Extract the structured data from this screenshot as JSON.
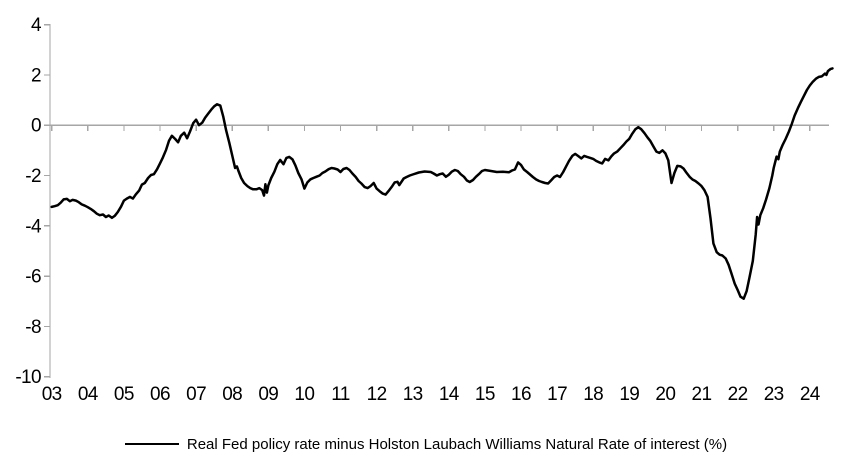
{
  "chart_data": {
    "type": "line",
    "title": "",
    "xlabel": "",
    "ylabel": "",
    "grid": "zero-line-only",
    "legend_position": "bottom-center",
    "background_color": "#FFFFFF",
    "axis_color": "#A6A6A6",
    "gridline_value": 0,
    "y_axis": {
      "range": [
        -10,
        4
      ],
      "tick_values": [
        4,
        2,
        0,
        -2,
        -4,
        -6,
        -8,
        -10
      ]
    },
    "x_axis": {
      "first_tick_year": 2003,
      "tick_labels": [
        "03",
        "04",
        "05",
        "06",
        "07",
        "08",
        "09",
        "10",
        "11",
        "12",
        "13",
        "14",
        "15",
        "16",
        "17",
        "18",
        "19",
        "20",
        "21",
        "22",
        "23",
        "24"
      ],
      "range": [
        2002.95,
        2024.7
      ]
    },
    "series": [
      {
        "name": "Real Fed policy rate minus Holston Laubach Williams Natural Rate of interest (%)",
        "color": "#000000",
        "points": [
          [
            2003.0,
            -3.25
          ],
          [
            2003.08,
            -3.22
          ],
          [
            2003.17,
            -3.18
          ],
          [
            2003.25,
            -3.08
          ],
          [
            2003.33,
            -2.95
          ],
          [
            2003.42,
            -2.93
          ],
          [
            2003.5,
            -3.02
          ],
          [
            2003.58,
            -2.97
          ],
          [
            2003.67,
            -3.0
          ],
          [
            2003.75,
            -3.06
          ],
          [
            2003.83,
            -3.15
          ],
          [
            2003.92,
            -3.2
          ],
          [
            2004.0,
            -3.26
          ],
          [
            2004.08,
            -3.33
          ],
          [
            2004.17,
            -3.42
          ],
          [
            2004.25,
            -3.52
          ],
          [
            2004.33,
            -3.58
          ],
          [
            2004.42,
            -3.55
          ],
          [
            2004.5,
            -3.65
          ],
          [
            2004.58,
            -3.59
          ],
          [
            2004.67,
            -3.68
          ],
          [
            2004.75,
            -3.6
          ],
          [
            2004.83,
            -3.45
          ],
          [
            2004.92,
            -3.24
          ],
          [
            2005.0,
            -3.0
          ],
          [
            2005.08,
            -2.92
          ],
          [
            2005.17,
            -2.85
          ],
          [
            2005.25,
            -2.92
          ],
          [
            2005.33,
            -2.75
          ],
          [
            2005.42,
            -2.6
          ],
          [
            2005.5,
            -2.36
          ],
          [
            2005.58,
            -2.3
          ],
          [
            2005.67,
            -2.1
          ],
          [
            2005.75,
            -1.98
          ],
          [
            2005.83,
            -1.95
          ],
          [
            2005.92,
            -1.75
          ],
          [
            2006.0,
            -1.52
          ],
          [
            2006.08,
            -1.28
          ],
          [
            2006.17,
            -0.98
          ],
          [
            2006.25,
            -0.62
          ],
          [
            2006.33,
            -0.42
          ],
          [
            2006.42,
            -0.55
          ],
          [
            2006.5,
            -0.68
          ],
          [
            2006.58,
            -0.42
          ],
          [
            2006.67,
            -0.3
          ],
          [
            2006.75,
            -0.52
          ],
          [
            2006.83,
            -0.25
          ],
          [
            2006.92,
            0.08
          ],
          [
            2007.0,
            0.22
          ],
          [
            2007.08,
            0.0
          ],
          [
            2007.17,
            0.1
          ],
          [
            2007.25,
            0.3
          ],
          [
            2007.33,
            0.45
          ],
          [
            2007.42,
            0.62
          ],
          [
            2007.5,
            0.75
          ],
          [
            2007.58,
            0.83
          ],
          [
            2007.67,
            0.78
          ],
          [
            2007.75,
            0.35
          ],
          [
            2007.83,
            -0.2
          ],
          [
            2007.92,
            -0.7
          ],
          [
            2008.0,
            -1.2
          ],
          [
            2008.08,
            -1.7
          ],
          [
            2008.13,
            -1.64
          ],
          [
            2008.17,
            -1.8
          ],
          [
            2008.25,
            -2.1
          ],
          [
            2008.33,
            -2.3
          ],
          [
            2008.42,
            -2.42
          ],
          [
            2008.5,
            -2.5
          ],
          [
            2008.58,
            -2.55
          ],
          [
            2008.67,
            -2.55
          ],
          [
            2008.75,
            -2.5
          ],
          [
            2008.83,
            -2.58
          ],
          [
            2008.88,
            -2.8
          ],
          [
            2008.92,
            -2.35
          ],
          [
            2008.96,
            -2.68
          ],
          [
            2009.0,
            -2.4
          ],
          [
            2009.08,
            -2.1
          ],
          [
            2009.17,
            -1.85
          ],
          [
            2009.25,
            -1.55
          ],
          [
            2009.33,
            -1.38
          ],
          [
            2009.42,
            -1.55
          ],
          [
            2009.5,
            -1.3
          ],
          [
            2009.58,
            -1.26
          ],
          [
            2009.67,
            -1.36
          ],
          [
            2009.75,
            -1.6
          ],
          [
            2009.83,
            -1.9
          ],
          [
            2009.92,
            -2.15
          ],
          [
            2010.0,
            -2.52
          ],
          [
            2010.08,
            -2.28
          ],
          [
            2010.17,
            -2.15
          ],
          [
            2010.25,
            -2.1
          ],
          [
            2010.33,
            -2.05
          ],
          [
            2010.42,
            -2.0
          ],
          [
            2010.5,
            -1.9
          ],
          [
            2010.58,
            -1.84
          ],
          [
            2010.67,
            -1.75
          ],
          [
            2010.75,
            -1.7
          ],
          [
            2010.83,
            -1.72
          ],
          [
            2010.92,
            -1.76
          ],
          [
            2011.0,
            -1.86
          ],
          [
            2011.08,
            -1.74
          ],
          [
            2011.17,
            -1.7
          ],
          [
            2011.25,
            -1.78
          ],
          [
            2011.33,
            -1.92
          ],
          [
            2011.42,
            -2.06
          ],
          [
            2011.5,
            -2.22
          ],
          [
            2011.58,
            -2.32
          ],
          [
            2011.67,
            -2.46
          ],
          [
            2011.75,
            -2.5
          ],
          [
            2011.83,
            -2.42
          ],
          [
            2011.92,
            -2.3
          ],
          [
            2012.0,
            -2.52
          ],
          [
            2012.08,
            -2.62
          ],
          [
            2012.17,
            -2.72
          ],
          [
            2012.25,
            -2.76
          ],
          [
            2012.33,
            -2.62
          ],
          [
            2012.42,
            -2.45
          ],
          [
            2012.5,
            -2.28
          ],
          [
            2012.58,
            -2.25
          ],
          [
            2012.63,
            -2.38
          ],
          [
            2012.75,
            -2.12
          ],
          [
            2012.83,
            -2.06
          ],
          [
            2012.92,
            -2.0
          ],
          [
            2013.0,
            -1.96
          ],
          [
            2013.17,
            -1.88
          ],
          [
            2013.33,
            -1.84
          ],
          [
            2013.5,
            -1.86
          ],
          [
            2013.58,
            -1.92
          ],
          [
            2013.67,
            -2.0
          ],
          [
            2013.75,
            -1.95
          ],
          [
            2013.83,
            -1.92
          ],
          [
            2013.92,
            -2.05
          ],
          [
            2014.0,
            -1.97
          ],
          [
            2014.08,
            -1.85
          ],
          [
            2014.17,
            -1.78
          ],
          [
            2014.25,
            -1.82
          ],
          [
            2014.33,
            -1.95
          ],
          [
            2014.42,
            -2.05
          ],
          [
            2014.5,
            -2.2
          ],
          [
            2014.58,
            -2.26
          ],
          [
            2014.67,
            -2.18
          ],
          [
            2014.75,
            -2.05
          ],
          [
            2014.83,
            -1.95
          ],
          [
            2014.92,
            -1.82
          ],
          [
            2015.0,
            -1.78
          ],
          [
            2015.17,
            -1.82
          ],
          [
            2015.33,
            -1.86
          ],
          [
            2015.5,
            -1.85
          ],
          [
            2015.67,
            -1.87
          ],
          [
            2015.75,
            -1.8
          ],
          [
            2015.83,
            -1.76
          ],
          [
            2015.92,
            -1.48
          ],
          [
            2016.0,
            -1.58
          ],
          [
            2016.08,
            -1.76
          ],
          [
            2016.17,
            -1.86
          ],
          [
            2016.25,
            -1.96
          ],
          [
            2016.33,
            -2.06
          ],
          [
            2016.42,
            -2.16
          ],
          [
            2016.5,
            -2.22
          ],
          [
            2016.58,
            -2.26
          ],
          [
            2016.67,
            -2.3
          ],
          [
            2016.75,
            -2.32
          ],
          [
            2016.83,
            -2.2
          ],
          [
            2016.92,
            -2.06
          ],
          [
            2017.0,
            -2.0
          ],
          [
            2017.08,
            -2.06
          ],
          [
            2017.17,
            -1.86
          ],
          [
            2017.25,
            -1.64
          ],
          [
            2017.33,
            -1.42
          ],
          [
            2017.42,
            -1.22
          ],
          [
            2017.5,
            -1.14
          ],
          [
            2017.58,
            -1.22
          ],
          [
            2017.67,
            -1.32
          ],
          [
            2017.75,
            -1.22
          ],
          [
            2017.83,
            -1.26
          ],
          [
            2017.92,
            -1.3
          ],
          [
            2018.0,
            -1.34
          ],
          [
            2018.08,
            -1.42
          ],
          [
            2018.17,
            -1.48
          ],
          [
            2018.25,
            -1.52
          ],
          [
            2018.33,
            -1.34
          ],
          [
            2018.42,
            -1.4
          ],
          [
            2018.5,
            -1.24
          ],
          [
            2018.58,
            -1.12
          ],
          [
            2018.67,
            -1.04
          ],
          [
            2018.75,
            -0.92
          ],
          [
            2018.83,
            -0.8
          ],
          [
            2018.92,
            -0.65
          ],
          [
            2019.0,
            -0.54
          ],
          [
            2019.08,
            -0.34
          ],
          [
            2019.17,
            -0.16
          ],
          [
            2019.25,
            -0.08
          ],
          [
            2019.33,
            -0.16
          ],
          [
            2019.42,
            -0.32
          ],
          [
            2019.5,
            -0.48
          ],
          [
            2019.58,
            -0.62
          ],
          [
            2019.67,
            -0.85
          ],
          [
            2019.75,
            -1.05
          ],
          [
            2019.83,
            -1.1
          ],
          [
            2019.92,
            -1.0
          ],
          [
            2020.0,
            -1.12
          ],
          [
            2020.08,
            -1.4
          ],
          [
            2020.17,
            -2.3
          ],
          [
            2020.25,
            -1.9
          ],
          [
            2020.33,
            -1.62
          ],
          [
            2020.42,
            -1.64
          ],
          [
            2020.5,
            -1.72
          ],
          [
            2020.58,
            -1.88
          ],
          [
            2020.67,
            -2.05
          ],
          [
            2020.75,
            -2.16
          ],
          [
            2020.83,
            -2.22
          ],
          [
            2020.92,
            -2.32
          ],
          [
            2021.0,
            -2.42
          ],
          [
            2021.08,
            -2.58
          ],
          [
            2021.17,
            -2.85
          ],
          [
            2021.25,
            -3.7
          ],
          [
            2021.33,
            -4.7
          ],
          [
            2021.42,
            -5.05
          ],
          [
            2021.5,
            -5.15
          ],
          [
            2021.58,
            -5.18
          ],
          [
            2021.67,
            -5.3
          ],
          [
            2021.75,
            -5.55
          ],
          [
            2021.83,
            -5.9
          ],
          [
            2021.92,
            -6.3
          ],
          [
            2022.0,
            -6.55
          ],
          [
            2022.08,
            -6.82
          ],
          [
            2022.17,
            -6.9
          ],
          [
            2022.25,
            -6.6
          ],
          [
            2022.33,
            -6.05
          ],
          [
            2022.42,
            -5.4
          ],
          [
            2022.5,
            -4.35
          ],
          [
            2022.54,
            -3.65
          ],
          [
            2022.58,
            -3.95
          ],
          [
            2022.63,
            -3.58
          ],
          [
            2022.71,
            -3.3
          ],
          [
            2022.79,
            -2.95
          ],
          [
            2022.88,
            -2.5
          ],
          [
            2022.96,
            -2.0
          ],
          [
            2023.0,
            -1.7
          ],
          [
            2023.04,
            -1.48
          ],
          [
            2023.08,
            -1.25
          ],
          [
            2023.13,
            -1.35
          ],
          [
            2023.17,
            -1.05
          ],
          [
            2023.25,
            -0.78
          ],
          [
            2023.33,
            -0.55
          ],
          [
            2023.42,
            -0.25
          ],
          [
            2023.5,
            0.05
          ],
          [
            2023.58,
            0.38
          ],
          [
            2023.67,
            0.68
          ],
          [
            2023.75,
            0.92
          ],
          [
            2023.83,
            1.15
          ],
          [
            2023.92,
            1.4
          ],
          [
            2024.0,
            1.58
          ],
          [
            2024.08,
            1.72
          ],
          [
            2024.17,
            1.85
          ],
          [
            2024.25,
            1.92
          ],
          [
            2024.33,
            1.94
          ],
          [
            2024.42,
            2.05
          ],
          [
            2024.46,
            2.0
          ],
          [
            2024.5,
            2.15
          ],
          [
            2024.58,
            2.24
          ],
          [
            2024.63,
            2.26
          ]
        ]
      }
    ]
  },
  "legend": {
    "label": "Real Fed policy rate minus Holston Laubach Williams Natural Rate of interest (%)"
  }
}
